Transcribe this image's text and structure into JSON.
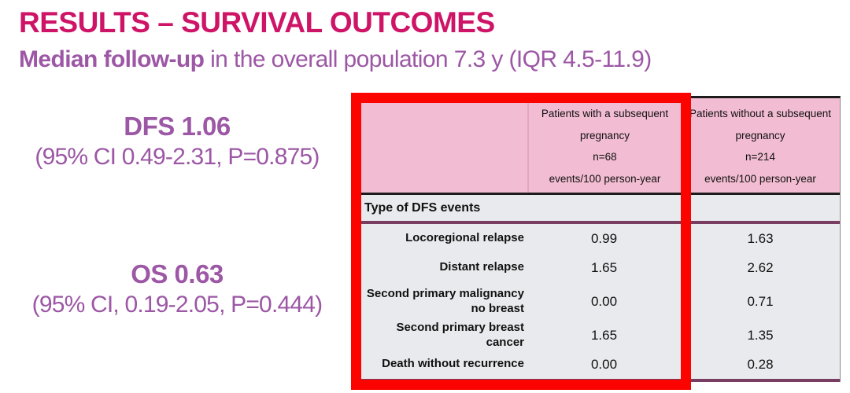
{
  "slide": {
    "title": "RESULTS – SURVIVAL OUTCOMES",
    "subtitle_bold": "Median follow-up",
    "subtitle_rest": " in the overall population 7.3 y (IQR 4.5-11.9)"
  },
  "stats": {
    "dfs": {
      "headline": "DFS 1.06",
      "detail": "(95% CI 0.49-2.31, P=0.875)"
    },
    "os": {
      "headline": "OS 0.63",
      "detail": "(95% CI, 0.19-2.05, P=0.444)"
    }
  },
  "table": {
    "columns": {
      "with_pregnancy": {
        "line1": "Patients with a subsequent",
        "line2": "pregnancy",
        "line3": "n=68",
        "line4": "events/100 person-year"
      },
      "without_pregnancy": {
        "line1": "Patients without a subsequent",
        "line2": "pregnancy",
        "line3": "n=214",
        "line4": "events/100 person-year"
      }
    },
    "section_header": "Type of DFS events",
    "rows": [
      {
        "label": "Locoregional relapse",
        "with_pregnancy": "0.99",
        "without_pregnancy": "1.63"
      },
      {
        "label": "Distant relapse",
        "with_pregnancy": "1.65",
        "without_pregnancy": "2.62"
      },
      {
        "label": "Second primary malignancy no breast",
        "with_pregnancy": "0.00",
        "without_pregnancy": "0.71"
      },
      {
        "label": "Second primary breast cancer",
        "with_pregnancy": "1.65",
        "without_pregnancy": "1.35"
      },
      {
        "label": "Death without recurrence",
        "with_pregnancy": "0.00",
        "without_pregnancy": "0.28"
      }
    ]
  },
  "colors": {
    "title_magenta": "#CE1467",
    "purple_text": "#9C57A5",
    "header_pink": "#F2BCD2",
    "body_gray": "#E8EAED",
    "line_purple": "#7A3D62",
    "highlight_red": "#FB0400"
  },
  "chart_data": {
    "type": "table",
    "title": "Type of DFS events (events/100 person-year)",
    "categories": [
      "Locoregional relapse",
      "Distant relapse",
      "Second primary malignancy no breast",
      "Second primary breast cancer",
      "Death without recurrence"
    ],
    "series": [
      {
        "name": "Patients with a subsequent pregnancy n=68",
        "values": [
          0.99,
          1.65,
          0.0,
          1.65,
          0.0
        ]
      },
      {
        "name": "Patients without a subsequent pregnancy n=214",
        "values": [
          1.63,
          2.62,
          0.71,
          1.35,
          0.28
        ]
      }
    ]
  }
}
